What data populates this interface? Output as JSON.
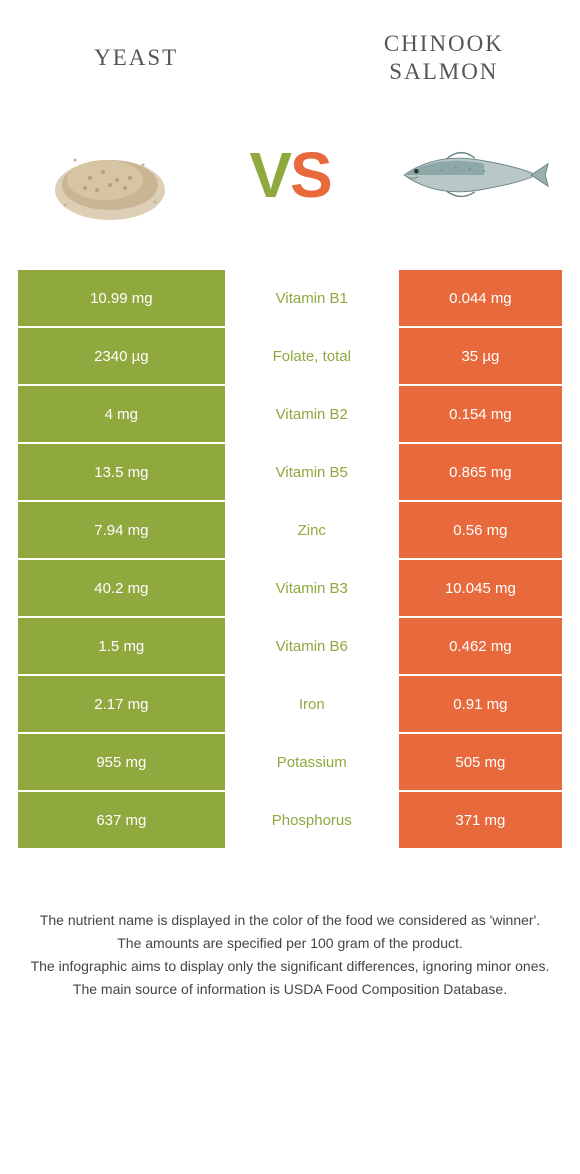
{
  "titles": {
    "left": "Yeast",
    "right": "Chinook salmon"
  },
  "vs": {
    "v": "V",
    "s": "S"
  },
  "colors": {
    "left": "#8fa93f",
    "right": "#e8693b",
    "bg": "#ffffff",
    "text_white": "#ffffff"
  },
  "rows": [
    {
      "left": "10.99 mg",
      "mid": "Vitamin B1",
      "right": "0.044 mg",
      "winner": "left"
    },
    {
      "left": "2340 µg",
      "mid": "Folate, total",
      "right": "35 µg",
      "winner": "left"
    },
    {
      "left": "4 mg",
      "mid": "Vitamin B2",
      "right": "0.154 mg",
      "winner": "left"
    },
    {
      "left": "13.5 mg",
      "mid": "Vitamin B5",
      "right": "0.865 mg",
      "winner": "left"
    },
    {
      "left": "7.94 mg",
      "mid": "Zinc",
      "right": "0.56 mg",
      "winner": "left"
    },
    {
      "left": "40.2 mg",
      "mid": "Vitamin B3",
      "right": "10.045 mg",
      "winner": "left"
    },
    {
      "left": "1.5 mg",
      "mid": "Vitamin B6",
      "right": "0.462 mg",
      "winner": "left"
    },
    {
      "left": "2.17 mg",
      "mid": "Iron",
      "right": "0.91 mg",
      "winner": "left"
    },
    {
      "left": "955 mg",
      "mid": "Potassium",
      "right": "505 mg",
      "winner": "left"
    },
    {
      "left": "637 mg",
      "mid": "Phosphorus",
      "right": "371 mg",
      "winner": "left"
    }
  ],
  "footer": {
    "line1": "The nutrient name is displayed in the color of the food we considered as 'winner'.",
    "line2": "The amounts are specified per 100 gram of the product.",
    "line3": "The infographic aims to display only the significant differences, ignoring minor ones.",
    "line4": "The main source of information is USDA Food Composition Database."
  }
}
